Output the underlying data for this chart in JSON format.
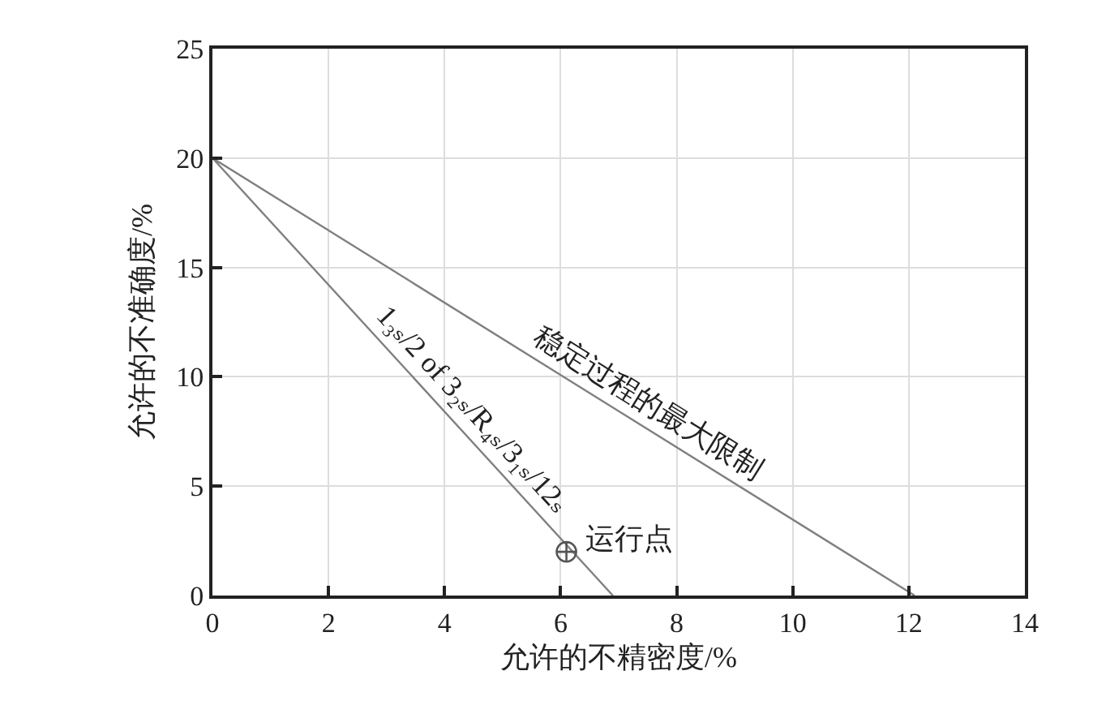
{
  "chart_data": {
    "type": "line",
    "xlabel": "允许的不精密度/%",
    "ylabel": "允许的不准确度/%",
    "series": [
      {
        "color": "#808080",
        "x": [
          0,
          12.1
        ],
        "values": [
          20,
          0
        ]
      },
      {
        "color": "#808080",
        "x": [
          0,
          6.9
        ],
        "values": [
          20,
          0
        ]
      },
      {
        "type": "scatter",
        "color": "#555555",
        "marker": "cross",
        "x": [
          6.1
        ],
        "values": [
          2
        ]
      }
    ],
    "annotations": [
      {
        "text": "1₃ₛ/2 of 3₂ₛ/R₄ₛ/3₁ₛ/12ₛ",
        "x": 4.2,
        "y": 7.83
      },
      {
        "text": "稳定过程的最大限制",
        "x": 7.3,
        "y": 7.93
      },
      {
        "text": "运行点",
        "x": 6.1,
        "y": 2
      }
    ],
    "xlim": [
      0,
      14
    ],
    "xticks": [
      0,
      2,
      4,
      6,
      8,
      10,
      12,
      14
    ],
    "ylim": [
      0,
      25
    ],
    "yticks": [
      0,
      5,
      10,
      15,
      20,
      25
    ],
    "grid": true,
    "legend": false
  }
}
